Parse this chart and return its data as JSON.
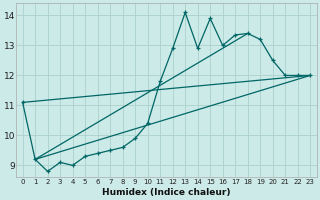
{
  "xlabel": "Humidex (Indice chaleur)",
  "ylabel": "",
  "bg_color": "#cceae7",
  "grid_color": "#b0d4d0",
  "line_color": "#006666",
  "xlim": [
    -0.5,
    23.5
  ],
  "ylim": [
    8.6,
    14.4
  ],
  "yticks": [
    9,
    10,
    11,
    12,
    13,
    14
  ],
  "xticks": [
    0,
    1,
    2,
    3,
    4,
    5,
    6,
    7,
    8,
    9,
    10,
    11,
    12,
    13,
    14,
    15,
    16,
    17,
    18,
    19,
    20,
    21,
    22,
    23
  ],
  "series1_x": [
    0,
    1,
    2,
    3,
    4,
    5,
    6,
    7,
    8,
    9,
    10,
    11,
    12,
    13,
    14,
    15,
    16,
    17,
    18,
    19,
    20,
    21,
    22,
    23
  ],
  "series1_y": [
    11.1,
    9.2,
    8.8,
    9.1,
    9.0,
    9.3,
    9.4,
    9.5,
    9.6,
    9.9,
    10.4,
    11.8,
    12.9,
    14.1,
    12.9,
    13.9,
    13.0,
    13.35,
    13.4,
    13.2,
    12.5,
    12.0,
    12.0,
    12.0
  ],
  "series2_x": [
    1,
    23
  ],
  "series2_y": [
    9.2,
    12.0
  ],
  "series3_x": [
    0,
    23
  ],
  "series3_y": [
    11.1,
    12.0
  ],
  "series4_x": [
    1,
    18
  ],
  "series4_y": [
    9.2,
    13.4
  ]
}
